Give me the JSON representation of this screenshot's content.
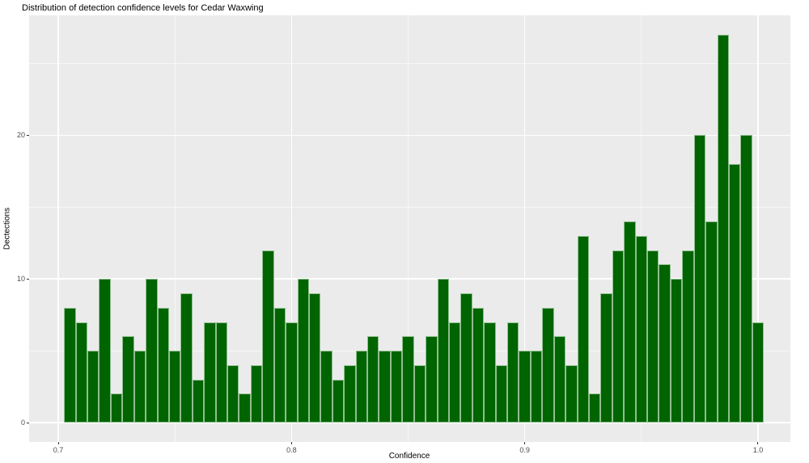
{
  "chart_data": {
    "type": "bar",
    "subtype": "histogram",
    "title": "Distribution of detection confidence levels for Cedar Waxwing",
    "xlabel": "Confidence",
    "ylabel": "Dectections",
    "bin_start": 0.7025,
    "bin_width": 0.005,
    "values": [
      8,
      7,
      5,
      10,
      2,
      6,
      5,
      10,
      8,
      5,
      9,
      3,
      7,
      7,
      4,
      2,
      4,
      12,
      8,
      7,
      10,
      9,
      5,
      3,
      4,
      5,
      6,
      5,
      5,
      6,
      4,
      6,
      10,
      7,
      9,
      8,
      7,
      4,
      7,
      5,
      5,
      8,
      6,
      4,
      13,
      2,
      9,
      12,
      14,
      13,
      12,
      11,
      10,
      12,
      20,
      14,
      27,
      18,
      20,
      7
    ],
    "x_ticks": [
      0.7,
      0.8,
      0.9,
      1.0
    ],
    "x_tick_labels": [
      "0.7",
      "0.8",
      "0.9",
      "1.0"
    ],
    "x_minor_ticks": [
      0.75,
      0.85,
      0.95
    ],
    "y_ticks": [
      0,
      10,
      20
    ],
    "y_tick_labels": [
      "0",
      "10",
      "20"
    ],
    "y_minor_ticks": [
      5,
      15,
      25
    ],
    "xlim": [
      0.687514,
      1.013873
    ],
    "ylim": [
      -1.35,
      28.35
    ],
    "grid": true,
    "legend_position": "none",
    "colors": {
      "bar_fill": "#006400",
      "bar_stroke": "#8fbe8f",
      "panel_background": "#ebebeb",
      "gridline": "#ffffff",
      "tick_label": "#4d4d4d",
      "axis_title": "#000000",
      "title": "#000000",
      "tick_mark": "#333333",
      "figure_background": "#ffffff"
    }
  }
}
